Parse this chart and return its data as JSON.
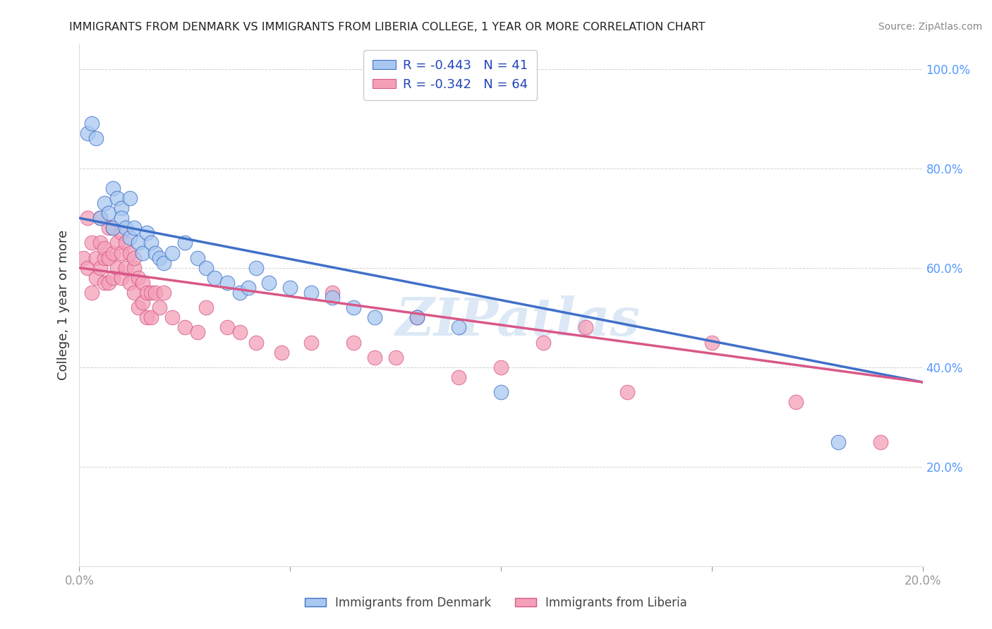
{
  "title": "IMMIGRANTS FROM DENMARK VS IMMIGRANTS FROM LIBERIA COLLEGE, 1 YEAR OR MORE CORRELATION CHART",
  "source": "Source: ZipAtlas.com",
  "ylabel": "College, 1 year or more",
  "legend_denmark": "Immigrants from Denmark",
  "legend_liberia": "Immigrants from Liberia",
  "R_denmark": -0.443,
  "N_denmark": 41,
  "R_liberia": -0.342,
  "N_liberia": 64,
  "xlim": [
    0.0,
    0.2
  ],
  "ylim": [
    0.0,
    1.05
  ],
  "xticks": [
    0.0,
    0.05,
    0.1,
    0.15,
    0.2
  ],
  "yticks": [
    0.0,
    0.2,
    0.4,
    0.6,
    0.8,
    1.0
  ],
  "color_denmark": "#A8C8F0",
  "color_liberia": "#F4A0B8",
  "line_color_denmark": "#4070C8",
  "line_color_liberia": "#D85888",
  "background_color": "#ffffff",
  "dk_line_x0": 0.0,
  "dk_line_y0": 0.7,
  "dk_line_x1": 0.2,
  "dk_line_y1": 0.37,
  "lb_line_x0": 0.0,
  "lb_line_y0": 0.6,
  "lb_line_x1": 0.2,
  "lb_line_y1": 0.37,
  "denmark_x": [
    0.002,
    0.003,
    0.004,
    0.005,
    0.006,
    0.007,
    0.008,
    0.008,
    0.009,
    0.01,
    0.01,
    0.011,
    0.012,
    0.012,
    0.013,
    0.014,
    0.015,
    0.016,
    0.017,
    0.018,
    0.019,
    0.02,
    0.022,
    0.025,
    0.028,
    0.03,
    0.032,
    0.035,
    0.038,
    0.04,
    0.042,
    0.045,
    0.05,
    0.055,
    0.06,
    0.065,
    0.07,
    0.08,
    0.09,
    0.1,
    0.18
  ],
  "denmark_y": [
    0.87,
    0.89,
    0.86,
    0.7,
    0.73,
    0.71,
    0.68,
    0.76,
    0.74,
    0.72,
    0.7,
    0.68,
    0.66,
    0.74,
    0.68,
    0.65,
    0.63,
    0.67,
    0.65,
    0.63,
    0.62,
    0.61,
    0.63,
    0.65,
    0.62,
    0.6,
    0.58,
    0.57,
    0.55,
    0.56,
    0.6,
    0.57,
    0.56,
    0.55,
    0.54,
    0.52,
    0.5,
    0.5,
    0.48,
    0.35,
    0.25
  ],
  "liberia_x": [
    0.001,
    0.002,
    0.002,
    0.003,
    0.003,
    0.004,
    0.004,
    0.005,
    0.005,
    0.005,
    0.006,
    0.006,
    0.006,
    0.007,
    0.007,
    0.007,
    0.008,
    0.008,
    0.008,
    0.009,
    0.009,
    0.01,
    0.01,
    0.01,
    0.011,
    0.011,
    0.012,
    0.012,
    0.013,
    0.013,
    0.013,
    0.014,
    0.014,
    0.015,
    0.015,
    0.016,
    0.016,
    0.017,
    0.017,
    0.018,
    0.019,
    0.02,
    0.022,
    0.025,
    0.028,
    0.03,
    0.035,
    0.038,
    0.042,
    0.048,
    0.055,
    0.06,
    0.065,
    0.07,
    0.075,
    0.08,
    0.09,
    0.1,
    0.11,
    0.12,
    0.13,
    0.15,
    0.17,
    0.19
  ],
  "liberia_y": [
    0.62,
    0.6,
    0.7,
    0.55,
    0.65,
    0.62,
    0.58,
    0.7,
    0.65,
    0.6,
    0.62,
    0.57,
    0.64,
    0.68,
    0.62,
    0.57,
    0.63,
    0.58,
    0.68,
    0.65,
    0.6,
    0.67,
    0.63,
    0.58,
    0.65,
    0.6,
    0.63,
    0.57,
    0.6,
    0.55,
    0.62,
    0.58,
    0.52,
    0.57,
    0.53,
    0.55,
    0.5,
    0.55,
    0.5,
    0.55,
    0.52,
    0.55,
    0.5,
    0.48,
    0.47,
    0.52,
    0.48,
    0.47,
    0.45,
    0.43,
    0.45,
    0.55,
    0.45,
    0.42,
    0.42,
    0.5,
    0.38,
    0.4,
    0.45,
    0.48,
    0.35,
    0.45,
    0.33,
    0.25
  ]
}
